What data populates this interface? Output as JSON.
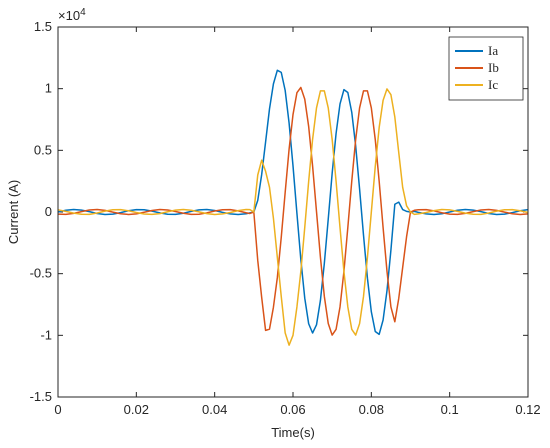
{
  "chart_data": {
    "type": "line",
    "xlabel": "Time(s)",
    "ylabel": "Current (A)",
    "y_multiplier_base": "×10",
    "y_multiplier_exponent": "4",
    "xlim": [
      0,
      0.12
    ],
    "xticks": [
      0,
      0.02,
      0.04,
      0.06,
      0.08,
      0.1,
      0.12
    ],
    "ylim": [
      -1.5,
      1.5
    ],
    "yticks": [
      -1.5,
      -1,
      -0.5,
      0,
      0.5,
      1,
      1.5
    ],
    "grid": false,
    "legend": "upper right",
    "x": [
      0,
      0.002,
      0.004,
      0.006,
      0.008,
      0.01,
      0.012,
      0.014,
      0.016,
      0.018,
      0.02,
      0.022,
      0.024,
      0.026,
      0.028,
      0.03,
      0.032,
      0.034,
      0.036,
      0.038,
      0.04,
      0.042,
      0.044,
      0.046,
      0.048,
      0.049,
      0.05,
      0.051,
      0.052,
      0.053,
      0.054,
      0.055,
      0.056,
      0.057,
      0.058,
      0.059,
      0.06,
      0.061,
      0.062,
      0.063,
      0.064,
      0.065,
      0.066,
      0.067,
      0.068,
      0.069,
      0.07,
      0.071,
      0.072,
      0.073,
      0.074,
      0.075,
      0.076,
      0.077,
      0.078,
      0.079,
      0.08,
      0.081,
      0.082,
      0.083,
      0.084,
      0.085,
      0.086,
      0.087,
      0.088,
      0.089,
      0.09,
      0.091,
      0.092,
      0.094,
      0.096,
      0.098,
      0.1,
      0.102,
      0.104,
      0.106,
      0.108,
      0.11,
      0.112,
      0.114,
      0.116,
      0.118,
      0.12
    ],
    "series": [
      {
        "name": "Ia",
        "color": "#0072BD",
        "values": [
          0,
          0.014,
          0.02,
          0.015,
          0.003,
          -0.012,
          -0.02,
          -0.017,
          -0.005,
          0.01,
          0.019,
          0.018,
          0.007,
          -0.007,
          -0.018,
          -0.019,
          -0.01,
          0.005,
          0.017,
          0.02,
          0.012,
          -0.003,
          -0.015,
          -0.02,
          -0.014,
          -0.007,
          0,
          0.094,
          0.303,
          0.567,
          0.836,
          1.039,
          1.149,
          1.132,
          0.986,
          0.722,
          0.375,
          -0.011,
          -0.386,
          -0.698,
          -0.906,
          -0.981,
          -0.915,
          -0.717,
          -0.417,
          -0.056,
          0.315,
          0.637,
          0.876,
          0.992,
          0.969,
          0.809,
          0.536,
          0.187,
          -0.187,
          -0.536,
          -0.809,
          -0.969,
          -0.992,
          -0.876,
          -0.637,
          -0.309,
          0.063,
          0.08,
          0.02,
          0.005,
          0,
          0.005,
          -0.003,
          -0.015,
          -0.02,
          -0.014,
          0,
          0.014,
          0.02,
          0.015,
          0.003,
          -0.012,
          -0.02,
          -0.017,
          -0.005,
          0.01,
          0.019
        ]
      },
      {
        "name": "Ib",
        "color": "#D95319",
        "values": [
          -0.017,
          -0.019,
          -0.011,
          0.003,
          0.016,
          0.02,
          0.013,
          -0.001,
          -0.014,
          -0.02,
          -0.015,
          -0.002,
          0.012,
          0.02,
          0.016,
          0.004,
          -0.01,
          -0.019,
          -0.018,
          -0.007,
          0.008,
          0.018,
          0.019,
          0.009,
          -0.006,
          -0.012,
          0,
          -0.393,
          -0.692,
          -0.96,
          -0.95,
          -0.772,
          -0.532,
          -0.205,
          0.159,
          0.508,
          0.79,
          0.967,
          1.01,
          0.915,
          0.693,
          0.374,
          0.004,
          -0.366,
          -0.684,
          -0.904,
          -0.998,
          -0.951,
          -0.77,
          -0.482,
          -0.125,
          0.249,
          0.588,
          0.844,
          0.982,
          0.982,
          0.844,
          0.588,
          0.249,
          -0.125,
          -0.482,
          -0.77,
          -0.89,
          -0.7,
          -0.45,
          -0.2,
          0,
          0.014,
          0.018,
          0.019,
          0.009,
          -0.006,
          -0.017,
          -0.019,
          -0.011,
          0.003,
          0.016,
          0.02,
          0.013,
          -0.001,
          -0.014,
          -0.02,
          -0.015
        ]
      },
      {
        "name": "Ic",
        "color": "#EDB120",
        "values": [
          0.017,
          0.005,
          -0.009,
          -0.018,
          -0.019,
          -0.008,
          0.007,
          0.018,
          0.019,
          0.01,
          -0.004,
          -0.016,
          -0.019,
          -0.013,
          0.002,
          0.015,
          0.02,
          0.014,
          0.001,
          -0.013,
          -0.02,
          -0.015,
          -0.004,
          0.011,
          0.02,
          0.019,
          0,
          0.3,
          0.42,
          0.33,
          0.2,
          -0.05,
          -0.368,
          -0.685,
          -0.98,
          -1.08,
          -1.0,
          -0.77,
          -0.482,
          -0.125,
          0.249,
          0.588,
          0.844,
          0.982,
          0.982,
          0.844,
          0.588,
          0.249,
          -0.125,
          -0.482,
          -0.77,
          -0.951,
          -0.998,
          -0.905,
          -0.685,
          -0.368,
          0,
          0.368,
          0.685,
          0.905,
          0.998,
          0.951,
          0.77,
          0.482,
          0.2,
          0.05,
          0,
          -0.019,
          -0.015,
          -0.004,
          0.011,
          0.02,
          0.017,
          0.005,
          -0.009,
          -0.018,
          -0.019,
          -0.008,
          0.007,
          0.018,
          0.019,
          0.01,
          -0.004
        ]
      }
    ]
  }
}
